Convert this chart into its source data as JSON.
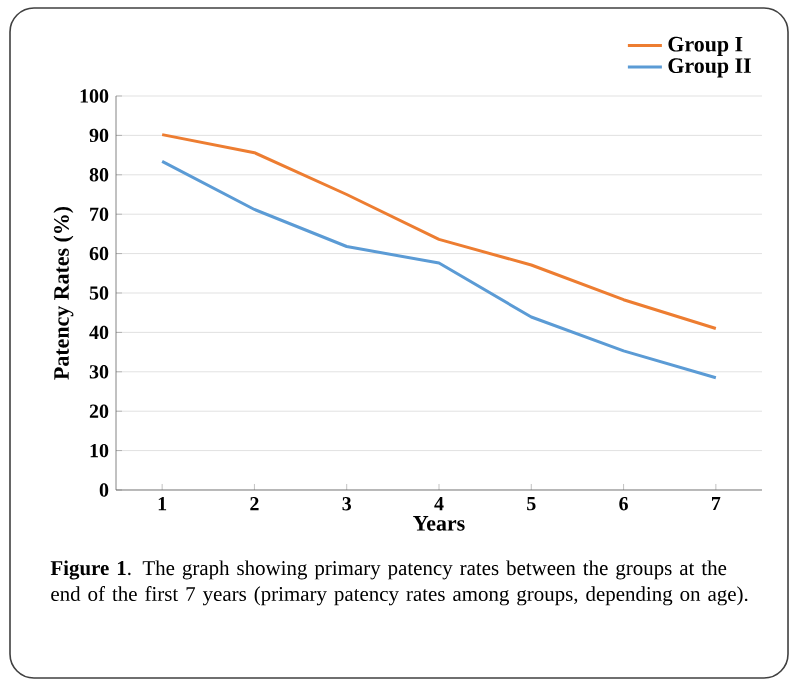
{
  "chart_data": {
    "type": "line",
    "xlabel": "Years",
    "ylabel": "Patency Rates (%)",
    "categories": [
      "1",
      "2",
      "3",
      "4",
      "5",
      "6",
      "7"
    ],
    "series": [
      {
        "name": "Group I",
        "color": "#ed7d31",
        "values": [
          90.2,
          85.6,
          75,
          63.6,
          57.1,
          48.3,
          41
        ]
      },
      {
        "name": "Group II",
        "color": "#5b9bd5",
        "values": [
          83.4,
          71.2,
          61.8,
          57.6,
          43.9,
          35.3,
          28.5
        ]
      }
    ],
    "ylim": [
      0,
      100
    ],
    "yticks": [
      0,
      10,
      20,
      30,
      40,
      50,
      60,
      70,
      80,
      90,
      100
    ],
    "grid": "y",
    "legend": "top right",
    "marker": "none",
    "line_style": "solid",
    "annotations": [
      "**Figure 1**. The graph showing primary patency rates between the groups at the end of the first 7 years (primary patency rates among groups, depending on age)."
    ]
  }
}
